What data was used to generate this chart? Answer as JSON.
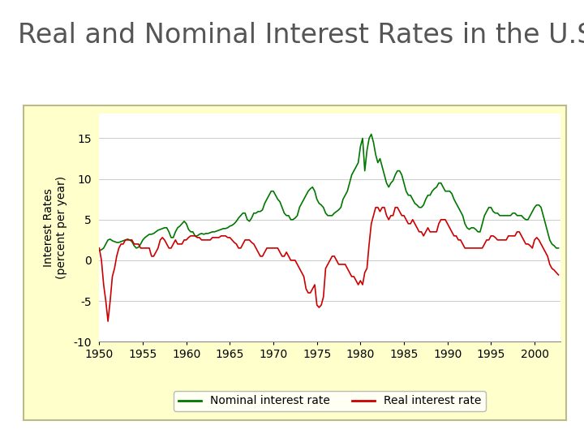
{
  "title": "Real and Nominal Interest Rates in the U.S.",
  "ylabel": "Interest Rates\n(percent per year)",
  "ylim": [
    -10,
    18
  ],
  "yticks": [
    -10,
    -5,
    0,
    5,
    10,
    15
  ],
  "xlim": [
    1950,
    2003
  ],
  "xticks": [
    1950,
    1955,
    1960,
    1965,
    1970,
    1975,
    1980,
    1985,
    1990,
    1995,
    2000
  ],
  "nominal_color": "#007700",
  "real_color": "#cc0000",
  "title_fontsize": 24,
  "axis_fontsize": 10,
  "legend_fontsize": 10,
  "nominal_data": [
    [
      1950.0,
      1.2
    ],
    [
      1950.25,
      1.3
    ],
    [
      1950.5,
      1.5
    ],
    [
      1950.75,
      2.0
    ],
    [
      1951.0,
      2.5
    ],
    [
      1951.25,
      2.6
    ],
    [
      1951.5,
      2.4
    ],
    [
      1951.75,
      2.3
    ],
    [
      1952.0,
      2.2
    ],
    [
      1952.25,
      2.2
    ],
    [
      1952.5,
      2.3
    ],
    [
      1952.75,
      2.4
    ],
    [
      1953.0,
      2.5
    ],
    [
      1953.25,
      2.6
    ],
    [
      1953.5,
      2.5
    ],
    [
      1953.75,
      2.3
    ],
    [
      1954.0,
      1.8
    ],
    [
      1954.25,
      1.5
    ],
    [
      1954.5,
      1.6
    ],
    [
      1954.75,
      2.0
    ],
    [
      1955.0,
      2.5
    ],
    [
      1955.25,
      2.8
    ],
    [
      1955.5,
      3.0
    ],
    [
      1955.75,
      3.2
    ],
    [
      1956.0,
      3.2
    ],
    [
      1956.25,
      3.3
    ],
    [
      1956.5,
      3.5
    ],
    [
      1956.75,
      3.7
    ],
    [
      1957.0,
      3.8
    ],
    [
      1957.25,
      3.9
    ],
    [
      1957.5,
      4.0
    ],
    [
      1957.75,
      4.0
    ],
    [
      1958.0,
      3.5
    ],
    [
      1958.25,
      2.8
    ],
    [
      1958.5,
      2.8
    ],
    [
      1958.75,
      3.5
    ],
    [
      1959.0,
      4.0
    ],
    [
      1959.25,
      4.2
    ],
    [
      1959.5,
      4.5
    ],
    [
      1959.75,
      4.8
    ],
    [
      1960.0,
      4.5
    ],
    [
      1960.25,
      3.8
    ],
    [
      1960.5,
      3.5
    ],
    [
      1960.75,
      3.5
    ],
    [
      1961.0,
      3.0
    ],
    [
      1961.25,
      3.0
    ],
    [
      1961.5,
      3.2
    ],
    [
      1961.75,
      3.3
    ],
    [
      1962.0,
      3.2
    ],
    [
      1962.25,
      3.3
    ],
    [
      1962.5,
      3.3
    ],
    [
      1962.75,
      3.4
    ],
    [
      1963.0,
      3.5
    ],
    [
      1963.25,
      3.5
    ],
    [
      1963.5,
      3.6
    ],
    [
      1963.75,
      3.7
    ],
    [
      1964.0,
      3.8
    ],
    [
      1964.25,
      3.9
    ],
    [
      1964.5,
      3.9
    ],
    [
      1964.75,
      4.0
    ],
    [
      1965.0,
      4.2
    ],
    [
      1965.25,
      4.3
    ],
    [
      1965.5,
      4.5
    ],
    [
      1965.75,
      4.8
    ],
    [
      1966.0,
      5.2
    ],
    [
      1966.25,
      5.5
    ],
    [
      1966.5,
      5.8
    ],
    [
      1966.75,
      5.8
    ],
    [
      1967.0,
      5.0
    ],
    [
      1967.25,
      4.8
    ],
    [
      1967.5,
      5.2
    ],
    [
      1967.75,
      5.8
    ],
    [
      1968.0,
      5.8
    ],
    [
      1968.25,
      6.0
    ],
    [
      1968.5,
      6.0
    ],
    [
      1968.75,
      6.2
    ],
    [
      1969.0,
      7.0
    ],
    [
      1969.25,
      7.5
    ],
    [
      1969.5,
      8.0
    ],
    [
      1969.75,
      8.5
    ],
    [
      1970.0,
      8.5
    ],
    [
      1970.25,
      8.0
    ],
    [
      1970.5,
      7.5
    ],
    [
      1970.75,
      7.2
    ],
    [
      1971.0,
      6.5
    ],
    [
      1971.25,
      5.8
    ],
    [
      1971.5,
      5.5
    ],
    [
      1971.75,
      5.5
    ],
    [
      1972.0,
      5.0
    ],
    [
      1972.25,
      5.0
    ],
    [
      1972.5,
      5.2
    ],
    [
      1972.75,
      5.5
    ],
    [
      1973.0,
      6.5
    ],
    [
      1973.25,
      7.0
    ],
    [
      1973.5,
      7.5
    ],
    [
      1973.75,
      8.0
    ],
    [
      1974.0,
      8.5
    ],
    [
      1974.25,
      8.8
    ],
    [
      1974.5,
      9.0
    ],
    [
      1974.75,
      8.5
    ],
    [
      1975.0,
      7.5
    ],
    [
      1975.25,
      7.0
    ],
    [
      1975.5,
      6.8
    ],
    [
      1975.75,
      6.5
    ],
    [
      1976.0,
      5.8
    ],
    [
      1976.25,
      5.5
    ],
    [
      1976.5,
      5.5
    ],
    [
      1976.75,
      5.5
    ],
    [
      1977.0,
      5.8
    ],
    [
      1977.25,
      6.0
    ],
    [
      1977.5,
      6.2
    ],
    [
      1977.75,
      6.5
    ],
    [
      1978.0,
      7.5
    ],
    [
      1978.25,
      8.0
    ],
    [
      1978.5,
      8.5
    ],
    [
      1978.75,
      9.5
    ],
    [
      1979.0,
      10.5
    ],
    [
      1979.25,
      11.0
    ],
    [
      1979.5,
      11.5
    ],
    [
      1979.75,
      12.0
    ],
    [
      1980.0,
      14.0
    ],
    [
      1980.25,
      15.0
    ],
    [
      1980.5,
      11.0
    ],
    [
      1980.75,
      13.5
    ],
    [
      1981.0,
      15.0
    ],
    [
      1981.25,
      15.5
    ],
    [
      1981.5,
      14.5
    ],
    [
      1981.75,
      13.0
    ],
    [
      1982.0,
      12.0
    ],
    [
      1982.25,
      12.5
    ],
    [
      1982.5,
      11.5
    ],
    [
      1982.75,
      10.5
    ],
    [
      1983.0,
      9.5
    ],
    [
      1983.25,
      9.0
    ],
    [
      1983.5,
      9.5
    ],
    [
      1983.75,
      9.8
    ],
    [
      1984.0,
      10.5
    ],
    [
      1984.25,
      11.0
    ],
    [
      1984.5,
      11.0
    ],
    [
      1984.75,
      10.5
    ],
    [
      1985.0,
      9.5
    ],
    [
      1985.25,
      8.5
    ],
    [
      1985.5,
      8.0
    ],
    [
      1985.75,
      8.0
    ],
    [
      1986.0,
      7.5
    ],
    [
      1986.25,
      7.0
    ],
    [
      1986.5,
      6.8
    ],
    [
      1986.75,
      6.5
    ],
    [
      1987.0,
      6.5
    ],
    [
      1987.25,
      6.8
    ],
    [
      1987.5,
      7.5
    ],
    [
      1987.75,
      8.0
    ],
    [
      1988.0,
      8.0
    ],
    [
      1988.25,
      8.5
    ],
    [
      1988.5,
      8.8
    ],
    [
      1988.75,
      9.0
    ],
    [
      1989.0,
      9.5
    ],
    [
      1989.25,
      9.5
    ],
    [
      1989.5,
      9.0
    ],
    [
      1989.75,
      8.5
    ],
    [
      1990.0,
      8.5
    ],
    [
      1990.25,
      8.5
    ],
    [
      1990.5,
      8.2
    ],
    [
      1990.75,
      7.5
    ],
    [
      1991.0,
      7.0
    ],
    [
      1991.25,
      6.5
    ],
    [
      1991.5,
      6.0
    ],
    [
      1991.75,
      5.5
    ],
    [
      1992.0,
      4.5
    ],
    [
      1992.25,
      4.0
    ],
    [
      1992.5,
      3.8
    ],
    [
      1992.75,
      4.0
    ],
    [
      1993.0,
      4.0
    ],
    [
      1993.25,
      3.8
    ],
    [
      1993.5,
      3.5
    ],
    [
      1993.75,
      3.5
    ],
    [
      1994.0,
      4.5
    ],
    [
      1994.25,
      5.5
    ],
    [
      1994.5,
      6.0
    ],
    [
      1994.75,
      6.5
    ],
    [
      1995.0,
      6.5
    ],
    [
      1995.25,
      6.0
    ],
    [
      1995.5,
      5.8
    ],
    [
      1995.75,
      5.8
    ],
    [
      1996.0,
      5.5
    ],
    [
      1996.25,
      5.5
    ],
    [
      1996.5,
      5.5
    ],
    [
      1996.75,
      5.5
    ],
    [
      1997.0,
      5.5
    ],
    [
      1997.25,
      5.5
    ],
    [
      1997.5,
      5.8
    ],
    [
      1997.75,
      5.8
    ],
    [
      1998.0,
      5.5
    ],
    [
      1998.25,
      5.5
    ],
    [
      1998.5,
      5.5
    ],
    [
      1998.75,
      5.2
    ],
    [
      1999.0,
      5.0
    ],
    [
      1999.25,
      5.0
    ],
    [
      1999.5,
      5.5
    ],
    [
      1999.75,
      6.0
    ],
    [
      2000.0,
      6.5
    ],
    [
      2000.25,
      6.8
    ],
    [
      2000.5,
      6.8
    ],
    [
      2000.75,
      6.5
    ],
    [
      2001.0,
      5.5
    ],
    [
      2001.25,
      4.5
    ],
    [
      2001.5,
      3.5
    ],
    [
      2001.75,
      2.5
    ],
    [
      2002.0,
      2.0
    ],
    [
      2002.25,
      1.8
    ],
    [
      2002.5,
      1.5
    ],
    [
      2002.75,
      1.5
    ]
  ],
  "real_data": [
    [
      1950.0,
      1.5
    ],
    [
      1950.25,
      0.0
    ],
    [
      1950.5,
      -3.0
    ],
    [
      1950.75,
      -5.0
    ],
    [
      1951.0,
      -7.5
    ],
    [
      1951.25,
      -5.0
    ],
    [
      1951.5,
      -2.0
    ],
    [
      1951.75,
      -1.0
    ],
    [
      1952.0,
      0.5
    ],
    [
      1952.25,
      1.5
    ],
    [
      1952.5,
      2.0
    ],
    [
      1952.75,
      2.0
    ],
    [
      1953.0,
      2.5
    ],
    [
      1953.25,
      2.5
    ],
    [
      1953.5,
      2.5
    ],
    [
      1953.75,
      2.5
    ],
    [
      1954.0,
      2.0
    ],
    [
      1954.25,
      2.0
    ],
    [
      1954.5,
      2.0
    ],
    [
      1954.75,
      1.5
    ],
    [
      1955.0,
      1.5
    ],
    [
      1955.25,
      1.5
    ],
    [
      1955.5,
      1.5
    ],
    [
      1955.75,
      1.5
    ],
    [
      1956.0,
      0.5
    ],
    [
      1956.25,
      0.5
    ],
    [
      1956.5,
      1.0
    ],
    [
      1956.75,
      1.5
    ],
    [
      1957.0,
      2.5
    ],
    [
      1957.25,
      2.8
    ],
    [
      1957.5,
      2.5
    ],
    [
      1957.75,
      2.0
    ],
    [
      1958.0,
      1.5
    ],
    [
      1958.25,
      1.5
    ],
    [
      1958.5,
      2.0
    ],
    [
      1958.75,
      2.5
    ],
    [
      1959.0,
      2.0
    ],
    [
      1959.25,
      2.0
    ],
    [
      1959.5,
      2.0
    ],
    [
      1959.75,
      2.5
    ],
    [
      1960.0,
      2.5
    ],
    [
      1960.25,
      2.8
    ],
    [
      1960.5,
      3.0
    ],
    [
      1960.75,
      3.0
    ],
    [
      1961.0,
      3.0
    ],
    [
      1961.25,
      2.8
    ],
    [
      1961.5,
      2.8
    ],
    [
      1961.75,
      2.5
    ],
    [
      1962.0,
      2.5
    ],
    [
      1962.25,
      2.5
    ],
    [
      1962.5,
      2.5
    ],
    [
      1962.75,
      2.5
    ],
    [
      1963.0,
      2.8
    ],
    [
      1963.25,
      2.8
    ],
    [
      1963.5,
      2.8
    ],
    [
      1963.75,
      2.8
    ],
    [
      1964.0,
      3.0
    ],
    [
      1964.25,
      3.0
    ],
    [
      1964.5,
      3.0
    ],
    [
      1964.75,
      2.8
    ],
    [
      1965.0,
      2.8
    ],
    [
      1965.25,
      2.5
    ],
    [
      1965.5,
      2.2
    ],
    [
      1965.75,
      2.0
    ],
    [
      1966.0,
      1.5
    ],
    [
      1966.25,
      1.5
    ],
    [
      1966.5,
      2.0
    ],
    [
      1966.75,
      2.5
    ],
    [
      1967.0,
      2.5
    ],
    [
      1967.25,
      2.5
    ],
    [
      1967.5,
      2.2
    ],
    [
      1967.75,
      2.0
    ],
    [
      1968.0,
      1.5
    ],
    [
      1968.25,
      1.0
    ],
    [
      1968.5,
      0.5
    ],
    [
      1968.75,
      0.5
    ],
    [
      1969.0,
      1.0
    ],
    [
      1969.25,
      1.5
    ],
    [
      1969.5,
      1.5
    ],
    [
      1969.75,
      1.5
    ],
    [
      1970.0,
      1.5
    ],
    [
      1970.25,
      1.5
    ],
    [
      1970.5,
      1.5
    ],
    [
      1970.75,
      1.0
    ],
    [
      1971.0,
      0.5
    ],
    [
      1971.25,
      0.5
    ],
    [
      1971.5,
      1.0
    ],
    [
      1971.75,
      0.5
    ],
    [
      1972.0,
      0.0
    ],
    [
      1972.25,
      0.0
    ],
    [
      1972.5,
      0.0
    ],
    [
      1972.75,
      -0.5
    ],
    [
      1973.0,
      -1.0
    ],
    [
      1973.25,
      -1.5
    ],
    [
      1973.5,
      -2.0
    ],
    [
      1973.75,
      -3.5
    ],
    [
      1974.0,
      -4.0
    ],
    [
      1974.25,
      -4.0
    ],
    [
      1974.5,
      -3.5
    ],
    [
      1974.75,
      -3.0
    ],
    [
      1975.0,
      -5.5
    ],
    [
      1975.25,
      -5.8
    ],
    [
      1975.5,
      -5.5
    ],
    [
      1975.75,
      -4.5
    ],
    [
      1976.0,
      -1.0
    ],
    [
      1976.25,
      -0.5
    ],
    [
      1976.5,
      0.0
    ],
    [
      1976.75,
      0.5
    ],
    [
      1977.0,
      0.5
    ],
    [
      1977.25,
      0.0
    ],
    [
      1977.5,
      -0.5
    ],
    [
      1977.75,
      -0.5
    ],
    [
      1978.0,
      -0.5
    ],
    [
      1978.25,
      -0.5
    ],
    [
      1978.5,
      -1.0
    ],
    [
      1978.75,
      -1.5
    ],
    [
      1979.0,
      -2.0
    ],
    [
      1979.25,
      -2.0
    ],
    [
      1979.5,
      -2.5
    ],
    [
      1979.75,
      -3.0
    ],
    [
      1980.0,
      -2.5
    ],
    [
      1980.25,
      -3.0
    ],
    [
      1980.5,
      -1.5
    ],
    [
      1980.75,
      -1.0
    ],
    [
      1981.0,
      2.0
    ],
    [
      1981.25,
      4.5
    ],
    [
      1981.5,
      5.5
    ],
    [
      1981.75,
      6.5
    ],
    [
      1982.0,
      6.5
    ],
    [
      1982.25,
      6.0
    ],
    [
      1982.5,
      6.5
    ],
    [
      1982.75,
      6.5
    ],
    [
      1983.0,
      5.5
    ],
    [
      1983.25,
      5.0
    ],
    [
      1983.5,
      5.5
    ],
    [
      1983.75,
      5.5
    ],
    [
      1984.0,
      6.5
    ],
    [
      1984.25,
      6.5
    ],
    [
      1984.5,
      6.0
    ],
    [
      1984.75,
      5.5
    ],
    [
      1985.0,
      5.5
    ],
    [
      1985.25,
      5.0
    ],
    [
      1985.5,
      4.5
    ],
    [
      1985.75,
      4.5
    ],
    [
      1986.0,
      5.0
    ],
    [
      1986.25,
      4.5
    ],
    [
      1986.5,
      4.0
    ],
    [
      1986.75,
      3.5
    ],
    [
      1987.0,
      3.5
    ],
    [
      1987.25,
      3.0
    ],
    [
      1987.5,
      3.5
    ],
    [
      1987.75,
      4.0
    ],
    [
      1988.0,
      3.5
    ],
    [
      1988.25,
      3.5
    ],
    [
      1988.5,
      3.5
    ],
    [
      1988.75,
      3.5
    ],
    [
      1989.0,
      4.5
    ],
    [
      1989.25,
      5.0
    ],
    [
      1989.5,
      5.0
    ],
    [
      1989.75,
      5.0
    ],
    [
      1990.0,
      4.5
    ],
    [
      1990.25,
      4.0
    ],
    [
      1990.5,
      3.5
    ],
    [
      1990.75,
      3.0
    ],
    [
      1991.0,
      3.0
    ],
    [
      1991.25,
      2.5
    ],
    [
      1991.5,
      2.5
    ],
    [
      1991.75,
      2.0
    ],
    [
      1992.0,
      1.5
    ],
    [
      1992.25,
      1.5
    ],
    [
      1992.5,
      1.5
    ],
    [
      1992.75,
      1.5
    ],
    [
      1993.0,
      1.5
    ],
    [
      1993.25,
      1.5
    ],
    [
      1993.5,
      1.5
    ],
    [
      1993.75,
      1.5
    ],
    [
      1994.0,
      1.5
    ],
    [
      1994.25,
      2.0
    ],
    [
      1994.5,
      2.5
    ],
    [
      1994.75,
      2.5
    ],
    [
      1995.0,
      3.0
    ],
    [
      1995.25,
      3.0
    ],
    [
      1995.5,
      2.8
    ],
    [
      1995.75,
      2.5
    ],
    [
      1996.0,
      2.5
    ],
    [
      1996.25,
      2.5
    ],
    [
      1996.5,
      2.5
    ],
    [
      1996.75,
      2.5
    ],
    [
      1997.0,
      3.0
    ],
    [
      1997.25,
      3.0
    ],
    [
      1997.5,
      3.0
    ],
    [
      1997.75,
      3.0
    ],
    [
      1998.0,
      3.5
    ],
    [
      1998.25,
      3.5
    ],
    [
      1998.5,
      3.0
    ],
    [
      1998.75,
      2.5
    ],
    [
      1999.0,
      2.0
    ],
    [
      1999.25,
      2.0
    ],
    [
      1999.5,
      1.8
    ],
    [
      1999.75,
      1.5
    ],
    [
      2000.0,
      2.5
    ],
    [
      2000.25,
      2.8
    ],
    [
      2000.5,
      2.5
    ],
    [
      2000.75,
      2.0
    ],
    [
      2001.0,
      1.5
    ],
    [
      2001.25,
      1.0
    ],
    [
      2001.5,
      0.5
    ],
    [
      2001.75,
      -0.5
    ],
    [
      2002.0,
      -1.0
    ],
    [
      2002.25,
      -1.2
    ],
    [
      2002.5,
      -1.5
    ],
    [
      2002.75,
      -1.8
    ]
  ]
}
